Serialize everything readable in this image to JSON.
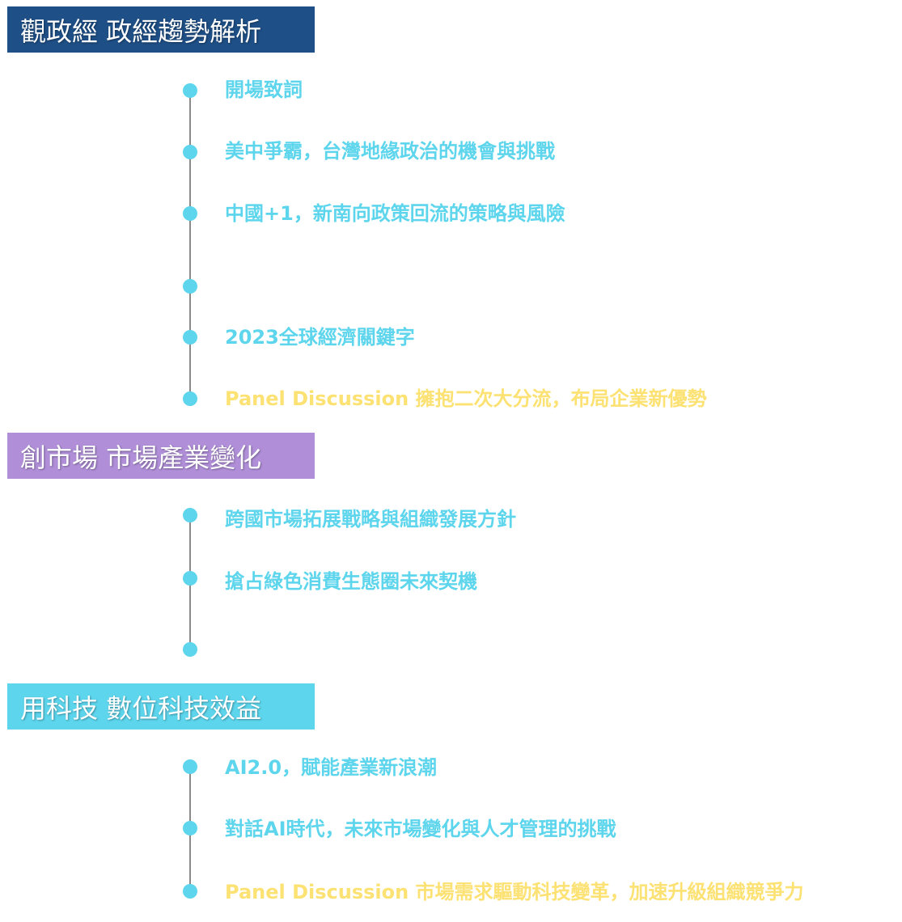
{
  "colors": {
    "section1_header_bg": "#1e4f86",
    "section2_header_bg": "#b08fd8",
    "section3_header_bg": "#5dd5ec",
    "item_text": "#5dd5ec",
    "panel_text": "#fce173",
    "dot": "#5dd5ec",
    "line": "#8a8a8a"
  },
  "sections": [
    {
      "title": "觀政經 政經趨勢解析",
      "items": [
        {
          "label": "開場致詞"
        },
        {
          "label": "美中爭霸，台灣地緣政治的機會與挑戰"
        },
        {
          "label": "中國+1，新南向政策回流的策略與風險"
        },
        {
          "label": ""
        },
        {
          "label": "2023全球經濟關鍵字"
        },
        {
          "label": "Panel Discussion 擁抱二次大分流，布局企業新優勢"
        }
      ]
    },
    {
      "title": "創市場 市場產業變化",
      "items": [
        {
          "label": "跨國市場拓展戰略與組織發展方針"
        },
        {
          "label": "搶占綠色消費生態圈未來契機"
        },
        {
          "label": ""
        }
      ]
    },
    {
      "title": "用科技 數位科技效益",
      "items": [
        {
          "label": "AI2.0，賦能產業新浪潮"
        },
        {
          "label": "對話AI時代，未來市場變化與人才管理的挑戰"
        },
        {
          "label": "Panel Discussion 市場需求驅動科技變革，加速升級組織競爭力"
        }
      ]
    }
  ]
}
